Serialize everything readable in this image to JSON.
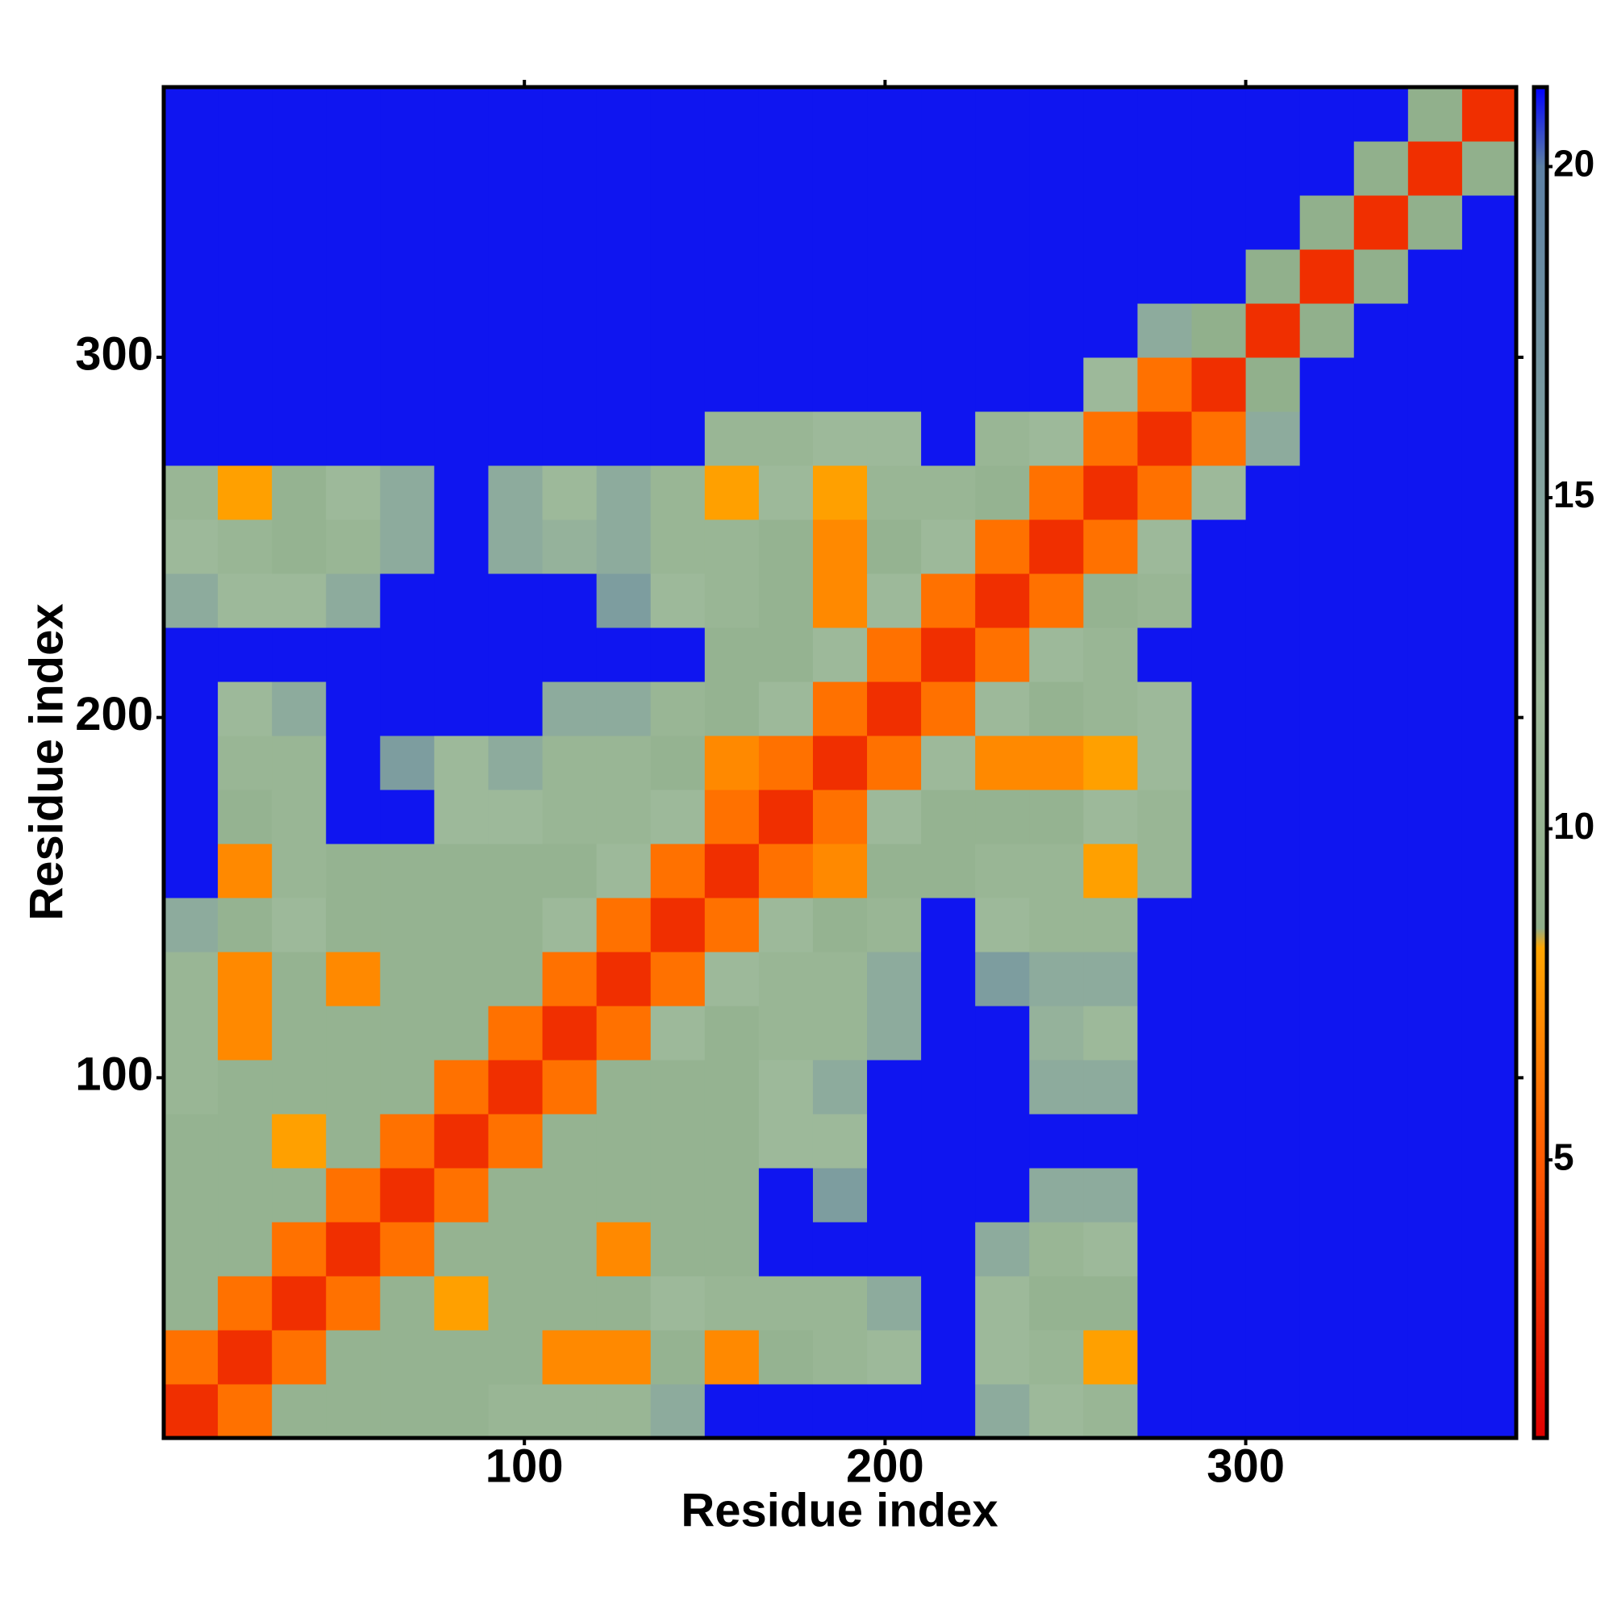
{
  "chart_data": {
    "type": "heatmap",
    "xlabel": "Residue index",
    "ylabel": "Residue index",
    "xlim": [
      0,
      375
    ],
    "ylim": [
      0,
      375
    ],
    "xticks": [
      100,
      200,
      300
    ],
    "yticks": [
      100,
      200,
      300
    ],
    "xbins": [
      0,
      15,
      30,
      45,
      60,
      75,
      90,
      105,
      120,
      135,
      150,
      165,
      180,
      195,
      210,
      225,
      240,
      255,
      270,
      285,
      300,
      315,
      330,
      345,
      360,
      375
    ],
    "ybins": [
      0,
      15,
      30,
      45,
      60,
      75,
      90,
      105,
      120,
      135,
      150,
      165,
      180,
      195,
      210,
      225,
      240,
      255,
      270,
      285,
      300,
      315,
      330,
      345,
      360,
      375
    ],
    "zlim": [
      0.8,
      21.2
    ],
    "zticks": [
      5,
      10,
      15,
      20
    ],
    "colorscale": [
      [
        0.8,
        "#e00000"
      ],
      [
        5,
        "#ff5a00"
      ],
      [
        8.2,
        "#ffa500"
      ],
      [
        8.5,
        "#8fae8a"
      ],
      [
        12,
        "#9db99a"
      ],
      [
        20,
        "#5c80a4"
      ],
      [
        21.2,
        "#0000ff"
      ]
    ],
    "z": [
      [
        3,
        6,
        10,
        10,
        10,
        10,
        11,
        11,
        11,
        14,
        21,
        21,
        21,
        21,
        21,
        14,
        12,
        11,
        21,
        21,
        21,
        21,
        21,
        21,
        21
      ],
      [
        6,
        3,
        6,
        10,
        10,
        10,
        10,
        7,
        7,
        10,
        7,
        10,
        11,
        12,
        21,
        12,
        11,
        8,
        21,
        21,
        21,
        21,
        21,
        21,
        21
      ],
      [
        10,
        6,
        3,
        6,
        10,
        8,
        10,
        10,
        10,
        12,
        11,
        11,
        11,
        14,
        21,
        12,
        10,
        10,
        21,
        21,
        21,
        21,
        21,
        21,
        21
      ],
      [
        10,
        10,
        6,
        3,
        6,
        10,
        10,
        10,
        7,
        10,
        10,
        21,
        21,
        21,
        21,
        14,
        11,
        12,
        21,
        21,
        21,
        21,
        21,
        21,
        21
      ],
      [
        10,
        10,
        10,
        6,
        3,
        6,
        10,
        10,
        10,
        10,
        10,
        21,
        16,
        21,
        21,
        21,
        14,
        14,
        21,
        21,
        21,
        21,
        21,
        21,
        21
      ],
      [
        10,
        10,
        8,
        10,
        6,
        3,
        6,
        10,
        10,
        10,
        10,
        12,
        12,
        21,
        21,
        21,
        21,
        21,
        21,
        21,
        21,
        21,
        21,
        21,
        21
      ],
      [
        11,
        10,
        10,
        10,
        10,
        6,
        3,
        6,
        10,
        10,
        10,
        12,
        14,
        21,
        21,
        21,
        14,
        14,
        21,
        21,
        21,
        21,
        21,
        21,
        21
      ],
      [
        11,
        7,
        10,
        10,
        10,
        10,
        6,
        3,
        6,
        12,
        10,
        11,
        11,
        14,
        21,
        21,
        13,
        12,
        21,
        21,
        21,
        21,
        21,
        21,
        21
      ],
      [
        11,
        7,
        10,
        7,
        10,
        10,
        10,
        6,
        3,
        6,
        12,
        11,
        11,
        14,
        21,
        16,
        14,
        14,
        21,
        21,
        21,
        21,
        21,
        21,
        21
      ],
      [
        14,
        10,
        12,
        10,
        10,
        10,
        10,
        12,
        6,
        3,
        6,
        12,
        10,
        11,
        21,
        12,
        11,
        11,
        21,
        21,
        21,
        21,
        21,
        21,
        21
      ],
      [
        21,
        7,
        11,
        10,
        10,
        10,
        10,
        10,
        12,
        6,
        3,
        6,
        7,
        10,
        10,
        11,
        11,
        8,
        11,
        21,
        21,
        21,
        21,
        21,
        21
      ],
      [
        21,
        10,
        11,
        21,
        21,
        12,
        12,
        11,
        11,
        12,
        6,
        3,
        6,
        12,
        10,
        10,
        10,
        12,
        11,
        21,
        21,
        21,
        21,
        21,
        21
      ],
      [
        21,
        11,
        11,
        21,
        16,
        12,
        14,
        11,
        11,
        10,
        7,
        6,
        3,
        6,
        12,
        7,
        7,
        8,
        12,
        21,
        21,
        21,
        21,
        21,
        21
      ],
      [
        21,
        12,
        14,
        21,
        21,
        21,
        21,
        14,
        14,
        11,
        10,
        12,
        6,
        3,
        6,
        12,
        10,
        11,
        12,
        21,
        21,
        21,
        21,
        21,
        21
      ],
      [
        21,
        21,
        21,
        21,
        21,
        21,
        21,
        21,
        21,
        21,
        10,
        10,
        12,
        6,
        3,
        6,
        12,
        11,
        21,
        21,
        21,
        21,
        21,
        21,
        21
      ],
      [
        14,
        12,
        12,
        14,
        21,
        21,
        21,
        21,
        16,
        12,
        11,
        10,
        7,
        12,
        6,
        3,
        6,
        10,
        11,
        21,
        21,
        21,
        21,
        21,
        21
      ],
      [
        12,
        11,
        10,
        11,
        14,
        21,
        14,
        13,
        14,
        11,
        11,
        10,
        7,
        10,
        12,
        6,
        3,
        6,
        12,
        21,
        21,
        21,
        21,
        21,
        21
      ],
      [
        11,
        8,
        10,
        12,
        14,
        21,
        14,
        12,
        14,
        11,
        8,
        12,
        8,
        11,
        11,
        10,
        6,
        3,
        6,
        12,
        21,
        21,
        21,
        21,
        21
      ],
      [
        21,
        21,
        21,
        21,
        21,
        21,
        21,
        21,
        21,
        21,
        11,
        11,
        12,
        12,
        21,
        11,
        12,
        6,
        3,
        6,
        14,
        21,
        21,
        21,
        21
      ],
      [
        21,
        21,
        21,
        21,
        21,
        21,
        21,
        21,
        21,
        21,
        21,
        21,
        21,
        21,
        21,
        21,
        21,
        12,
        6,
        3,
        9,
        21,
        21,
        21,
        21
      ],
      [
        21,
        21,
        21,
        21,
        21,
        21,
        21,
        21,
        21,
        21,
        21,
        21,
        21,
        21,
        21,
        21,
        21,
        21,
        14,
        9,
        3,
        9,
        21,
        21,
        21
      ],
      [
        21,
        21,
        21,
        21,
        21,
        21,
        21,
        21,
        21,
        21,
        21,
        21,
        21,
        21,
        21,
        21,
        21,
        21,
        21,
        21,
        9,
        3,
        9,
        21,
        21
      ],
      [
        21,
        21,
        21,
        21,
        21,
        21,
        21,
        21,
        21,
        21,
        21,
        21,
        21,
        21,
        21,
        21,
        21,
        21,
        21,
        21,
        21,
        9,
        3,
        9,
        21
      ],
      [
        21,
        21,
        21,
        21,
        21,
        21,
        21,
        21,
        21,
        21,
        21,
        21,
        21,
        21,
        21,
        21,
        21,
        21,
        21,
        21,
        21,
        21,
        9,
        3,
        9
      ],
      [
        21,
        21,
        21,
        21,
        21,
        21,
        21,
        21,
        21,
        21,
        21,
        21,
        21,
        21,
        21,
        21,
        21,
        21,
        21,
        21,
        21,
        21,
        21,
        9,
        3
      ]
    ]
  }
}
